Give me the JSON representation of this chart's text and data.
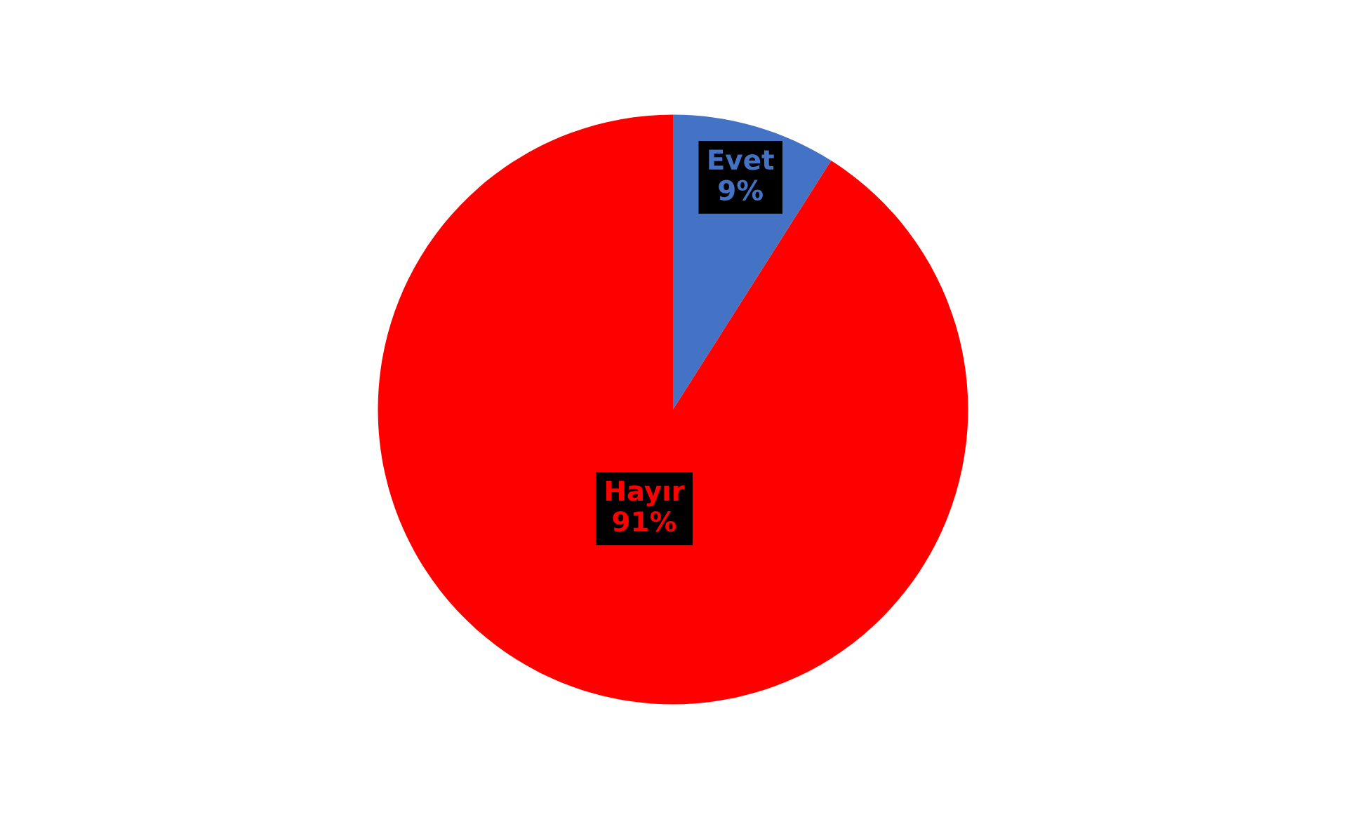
{
  "chart_data": {
    "type": "pie",
    "categories": [
      "Evet",
      "Hayır"
    ],
    "values": [
      9,
      91
    ],
    "colors": [
      "#4472c4",
      "#ff0000"
    ],
    "value_labels": [
      "9%",
      "91%"
    ]
  }
}
